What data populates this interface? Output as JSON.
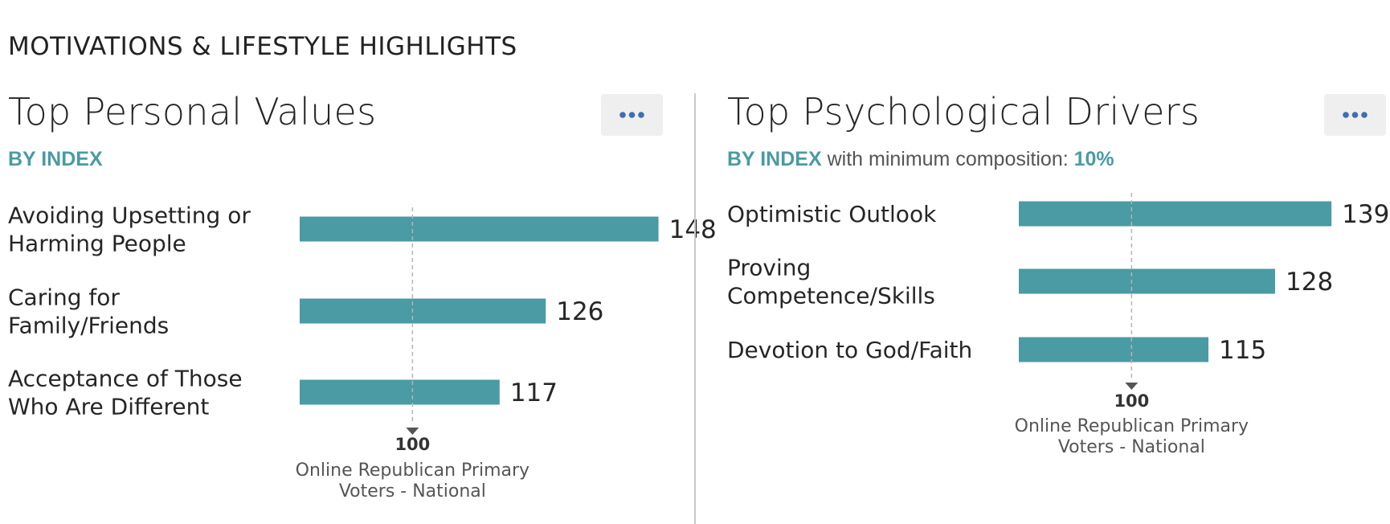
{
  "section_title": "MOTIVATIONS & LIFESTYLE HIGHLIGHTS",
  "accent_color": "#4a9ba3",
  "bar_color": "#4a9ba3",
  "panels": [
    {
      "title": "Top Personal Values",
      "menu_icon": "more-horizontal-icon",
      "subtitle_accent": "BY INDEX",
      "subtitle_rest": "",
      "subtitle_value": ""
    },
    {
      "title": "Top Psychological Drivers",
      "menu_icon": "more-horizontal-icon",
      "subtitle_accent": "BY INDEX",
      "subtitle_rest": " with minimum composition: ",
      "subtitle_value": "10%"
    }
  ],
  "chart_data": [
    {
      "type": "bar",
      "orientation": "horizontal",
      "title": "Top Personal Values",
      "categories": [
        [
          "Avoiding Upsetting or",
          "Harming People"
        ],
        [
          "Caring for",
          "Family/Friends"
        ],
        [
          "Acceptance of Those",
          "Who Are Different"
        ]
      ],
      "values": [
        148,
        126,
        117
      ],
      "baseline": 100,
      "baseline_label": "100",
      "baseline_caption": [
        "Online Republican Primary",
        "Voters - National"
      ],
      "xlim": [
        0,
        155
      ]
    },
    {
      "type": "bar",
      "orientation": "horizontal",
      "title": "Top Psychological Drivers",
      "categories": [
        [
          "Optimistic Outlook"
        ],
        [
          "Proving",
          "Competence/Skills"
        ],
        [
          "Devotion to God/Faith"
        ]
      ],
      "values": [
        139,
        128,
        115
      ],
      "baseline": 100,
      "baseline_label": "100",
      "baseline_caption": [
        "Online Republican Primary",
        "Voters - National"
      ],
      "xlim": [
        0,
        155
      ]
    }
  ]
}
